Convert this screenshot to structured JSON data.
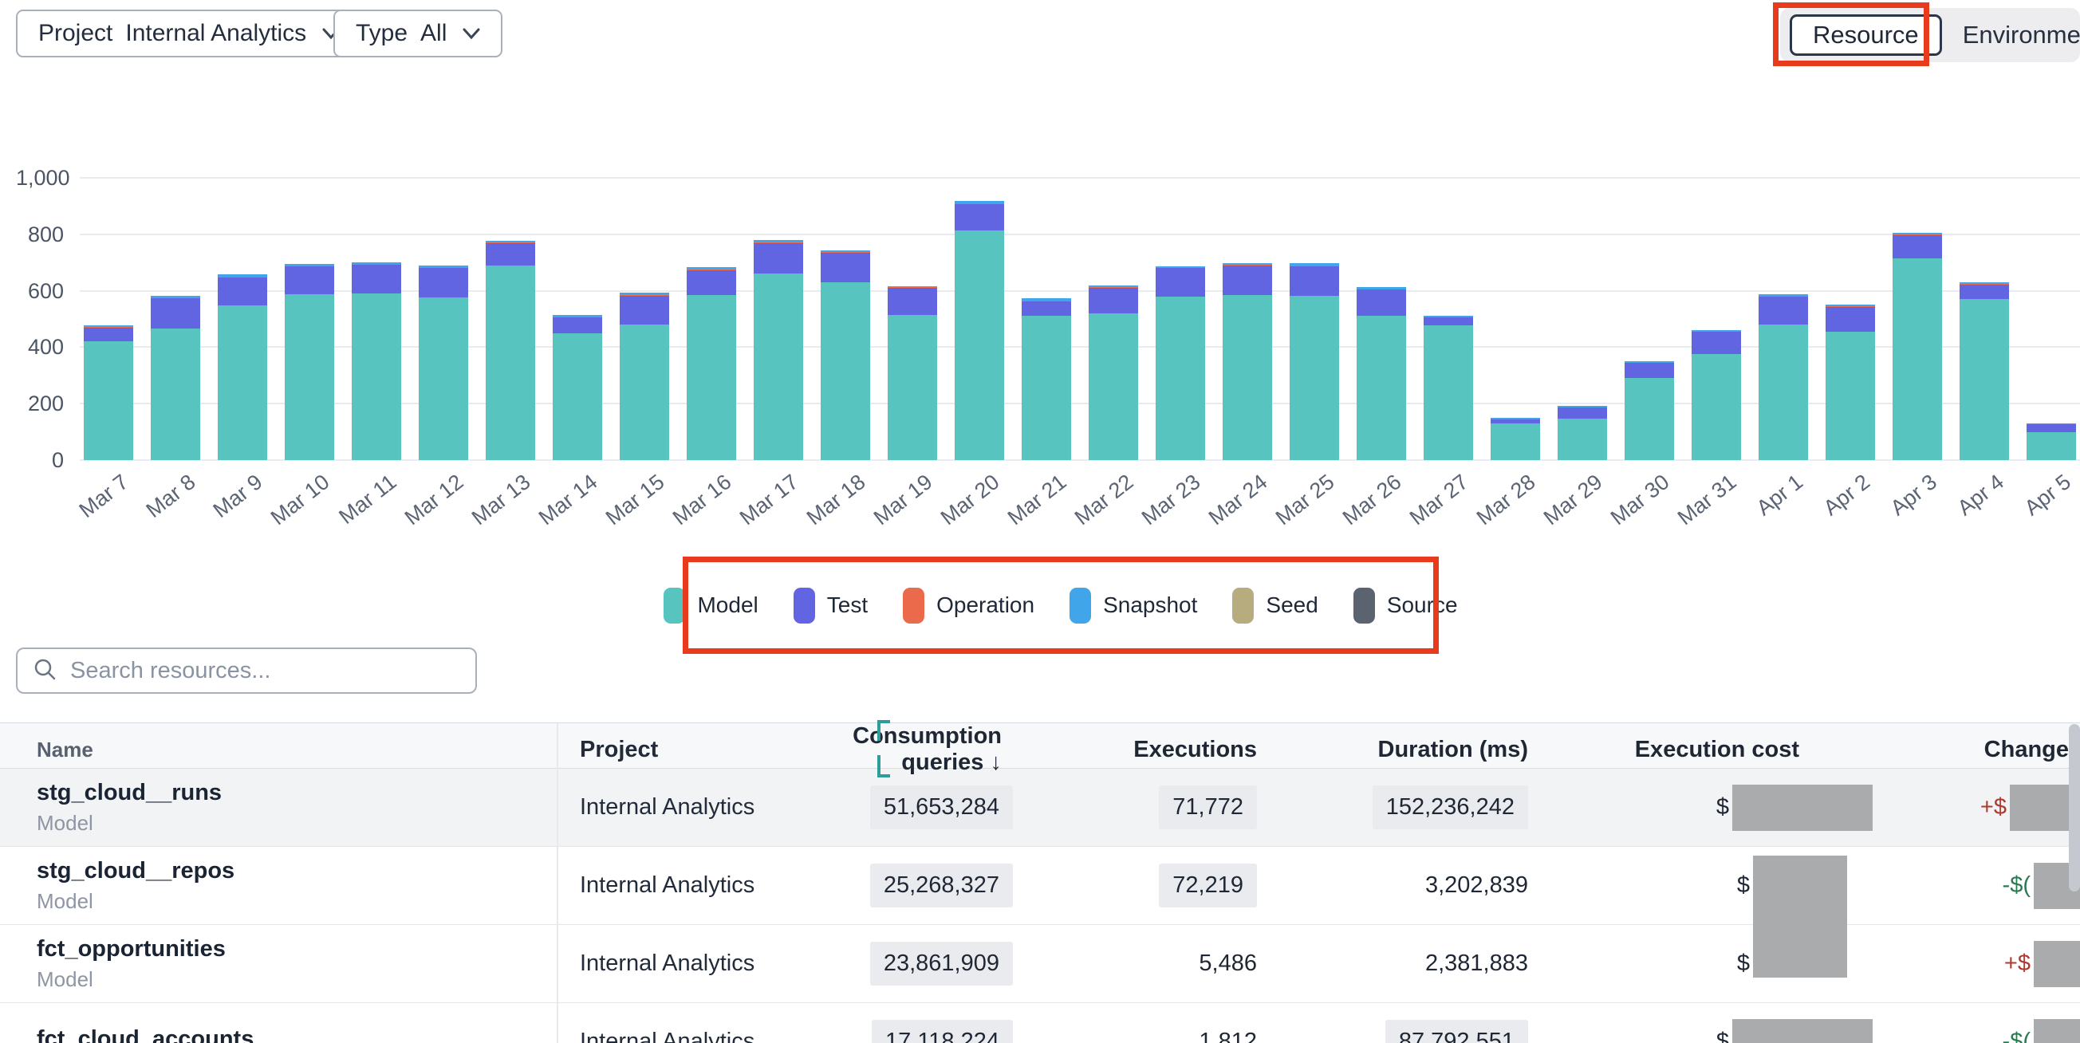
{
  "filters": {
    "project_label": "Project",
    "project_value": "Internal Analytics",
    "type_label": "Type",
    "type_value": "All"
  },
  "view_toggle": {
    "selected": "Resource",
    "other": "Environment"
  },
  "annotations": {
    "highlight_color": "#E83B1D",
    "cursor_color": "#2E9D99"
  },
  "chart_data": {
    "type": "bar",
    "stacked": true,
    "title": "",
    "xlabel": "",
    "ylabel": "",
    "ylim": [
      0,
      1000
    ],
    "grid": true,
    "legend_position": "bottom",
    "yticks": [
      0,
      200,
      400,
      600,
      800,
      1000
    ],
    "ytick_labels": [
      "0",
      "200",
      "400",
      "600",
      "800",
      "1,000"
    ],
    "categories": [
      "Mar 7",
      "Mar 8",
      "Mar 9",
      "Mar 10",
      "Mar 11",
      "Mar 12",
      "Mar 13",
      "Mar 14",
      "Mar 15",
      "Mar 16",
      "Mar 17",
      "Mar 18",
      "Mar 19",
      "Mar 20",
      "Mar 21",
      "Mar 22",
      "Mar 23",
      "Mar 24",
      "Mar 25",
      "Mar 26",
      "Mar 27",
      "Mar 28",
      "Mar 29",
      "Mar 30",
      "Mar 31",
      "Apr 1",
      "Apr 2",
      "Apr 3",
      "Apr 4",
      "Apr 5"
    ],
    "series": [
      {
        "name": "Model",
        "color": "#57C4BF",
        "values": [
          420,
          465,
          548,
          588,
          590,
          575,
          690,
          450,
          480,
          585,
          660,
          630,
          515,
          815,
          510,
          520,
          580,
          585,
          582,
          512,
          478,
          130,
          148,
          290,
          375,
          479,
          454,
          714,
          571,
          100
        ]
      },
      {
        "name": "Test",
        "color": "#6165E2",
        "values": [
          50,
          108,
          100,
          98,
          102,
          105,
          78,
          55,
          102,
          88,
          108,
          105,
          95,
          92,
          52,
          90,
          100,
          105,
          105,
          92,
          28,
          15,
          38,
          55,
          80,
          100,
          89,
          84,
          51,
          28
        ]
      },
      {
        "name": "Operation",
        "color": "#EA6A4B",
        "values": [
          2,
          2,
          2,
          2,
          2,
          2,
          2,
          2,
          2,
          2,
          2,
          2,
          2,
          2,
          2,
          2,
          2,
          2,
          2,
          2,
          2,
          1,
          1,
          1,
          2,
          2,
          2,
          2,
          2,
          1
        ]
      },
      {
        "name": "Snapshot",
        "color": "#41A6E9",
        "values": [
          6,
          6,
          8,
          8,
          8,
          6,
          8,
          6,
          8,
          8,
          10,
          5,
          5,
          10,
          10,
          8,
          5,
          7,
          8,
          8,
          4,
          3,
          4,
          5,
          4,
          8,
          5,
          6,
          6,
          2
        ]
      },
      {
        "name": "Seed",
        "color": "#B6AC7E",
        "values": [
          0,
          0,
          0,
          0,
          0,
          0,
          0,
          0,
          0,
          0,
          0,
          0,
          0,
          0,
          0,
          0,
          0,
          0,
          0,
          0,
          0,
          0,
          0,
          0,
          0,
          0,
          0,
          0,
          0,
          0
        ]
      },
      {
        "name": "Source",
        "color": "#5C6370",
        "values": [
          0,
          0,
          0,
          0,
          0,
          0,
          0,
          0,
          0,
          0,
          0,
          0,
          0,
          0,
          0,
          0,
          0,
          0,
          0,
          0,
          0,
          0,
          0,
          0,
          0,
          0,
          0,
          0,
          0,
          0
        ]
      }
    ]
  },
  "legend": {
    "items": [
      {
        "label": "Model",
        "color": "#57C4BF"
      },
      {
        "label": "Test",
        "color": "#6165E2"
      },
      {
        "label": "Operation",
        "color": "#EA6A4B"
      },
      {
        "label": "Snapshot",
        "color": "#41A6E9"
      },
      {
        "label": "Seed",
        "color": "#B6AC7E"
      },
      {
        "label": "Source",
        "color": "#5C6370"
      }
    ]
  },
  "search": {
    "placeholder": "Search resources..."
  },
  "table": {
    "columns": {
      "name": "Name",
      "project": "Project",
      "queries": "Consumption queries",
      "executions": "Executions",
      "duration": "Duration (ms)",
      "cost": "Execution cost",
      "change": "Change"
    },
    "sort_indicator": "↓",
    "rows": [
      {
        "name": "stg_cloud__runs",
        "type": "Model",
        "project": "Internal Analytics",
        "queries": "51,653,284",
        "executions": "71,772",
        "duration": "152,236,242",
        "cost_prefix": "$",
        "change_prefix": "+$"
      },
      {
        "name": "stg_cloud__repos",
        "type": "Model",
        "project": "Internal Analytics",
        "queries": "25,268,327",
        "executions": "72,219",
        "duration": "3,202,839",
        "cost_prefix": "$",
        "change_prefix": "-$("
      },
      {
        "name": "fct_opportunities",
        "type": "Model",
        "project": "Internal Analytics",
        "queries": "23,861,909",
        "executions": "5,486",
        "duration": "2,381,883",
        "cost_prefix": "$",
        "change_prefix": "+$"
      },
      {
        "name": "fct_cloud_accounts",
        "type": "",
        "project": "Internal Analytics",
        "queries": "17,118,224",
        "executions": "1,812",
        "duration": "87,792,551",
        "cost_prefix": "$",
        "change_prefix": "-$("
      }
    ]
  }
}
